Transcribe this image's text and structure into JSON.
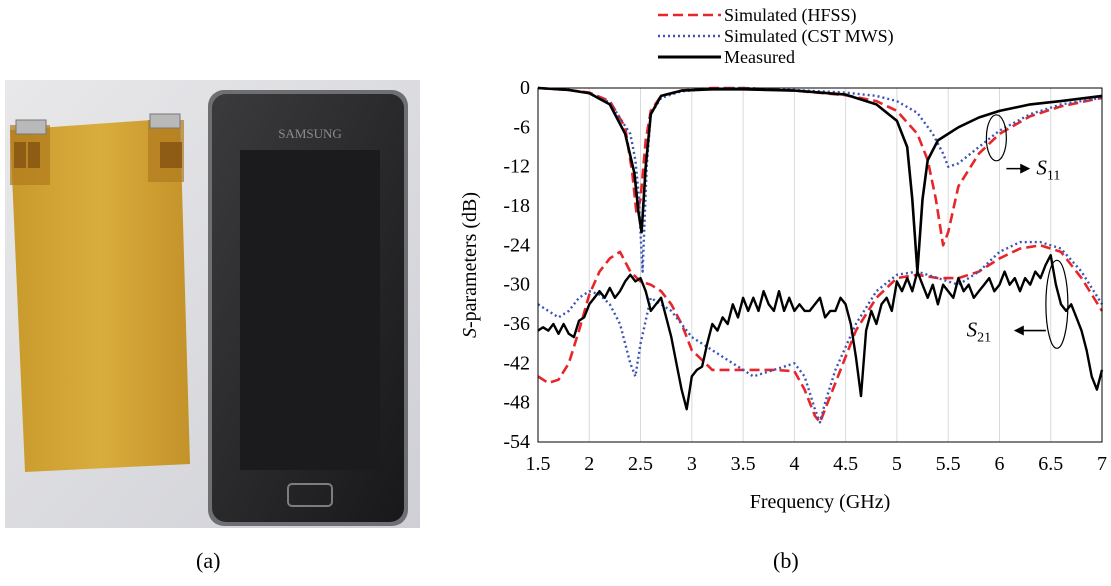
{
  "panels": {
    "a_label": "(a)",
    "b_label": "(b)"
  },
  "photo": {
    "phone_brand": "SAMSUNG"
  },
  "colors": {
    "hfss": "#e8262a",
    "cst": "#3a55b4",
    "measured": "#000000"
  },
  "chart_data": {
    "type": "line",
    "xlabel": "Frequency (GHz)",
    "ylabel_prefix": "S",
    "ylabel_suffix": "-parameters (dB)",
    "xlim": [
      1.5,
      7
    ],
    "ylim": [
      -54,
      0
    ],
    "xticks": [
      1.5,
      2,
      2.5,
      3,
      3.5,
      4,
      4.5,
      5,
      5.5,
      6,
      6.5,
      7
    ],
    "xtick_labels": [
      "1.5",
      "2",
      "2.5",
      "3",
      "3.5",
      "4",
      "4.5",
      "5",
      "5.5",
      "6",
      "6.5",
      "7"
    ],
    "yticks": [
      0,
      -6,
      -12,
      -18,
      -24,
      -30,
      -36,
      -42,
      -48,
      -54
    ],
    "ytick_labels": [
      "0",
      "-6",
      "-12",
      "-18",
      "-24",
      "-30",
      "-36",
      "-42",
      "-48",
      "-54"
    ],
    "grid": "vertical",
    "legend_position": "top",
    "annotations": [
      {
        "base": "S",
        "sub": "11"
      },
      {
        "base": "S",
        "sub": "21"
      }
    ],
    "series": [
      {
        "name": "Simulated (HFSS)",
        "style": "dashed",
        "color": "#e8262a",
        "x": [
          1.5,
          1.8,
          2.0,
          2.2,
          2.35,
          2.42,
          2.46,
          2.5,
          2.55,
          2.6,
          2.7,
          2.9,
          3.2,
          3.5,
          4.0,
          4.5,
          4.8,
          5.0,
          5.2,
          5.3,
          5.38,
          5.45,
          5.5,
          5.6,
          5.8,
          6.0,
          6.3,
          6.6,
          7.0
        ],
        "y": [
          0,
          -0.3,
          -0.7,
          -2,
          -6,
          -13,
          -19,
          -17,
          -8,
          -3.5,
          -1.2,
          -0.4,
          0,
          0,
          -0.4,
          -1.1,
          -2,
          -3.5,
          -7,
          -11,
          -17,
          -24,
          -22,
          -15,
          -10,
          -7,
          -4.3,
          -2.8,
          -1.5
        ],
        "label": "S11"
      },
      {
        "name": "Simulated (CST MWS)",
        "style": "dotted",
        "color": "#3a55b4",
        "x": [
          1.5,
          1.8,
          2.0,
          2.2,
          2.4,
          2.45,
          2.48,
          2.5,
          2.52,
          2.56,
          2.6,
          2.7,
          2.9,
          3.2,
          3.5,
          4.0,
          4.5,
          4.8,
          5.0,
          5.2,
          5.35,
          5.45,
          5.5,
          5.6,
          5.8,
          6.0,
          6.3,
          6.6,
          7.0
        ],
        "y": [
          0,
          -0.3,
          -0.8,
          -2.2,
          -7,
          -11,
          -16,
          -22,
          -28,
          -12,
          -4,
          -1.5,
          -0.5,
          -0.1,
          0,
          -0.3,
          -0.7,
          -1.2,
          -2,
          -3.8,
          -7,
          -10,
          -12,
          -11.5,
          -9,
          -6.5,
          -4,
          -2.5,
          -1.5
        ],
        "label": "S11"
      },
      {
        "name": "Measured",
        "style": "solid",
        "color": "#000000",
        "x": [
          1.5,
          1.8,
          2.0,
          2.2,
          2.35,
          2.44,
          2.48,
          2.51,
          2.55,
          2.6,
          2.7,
          2.9,
          3.2,
          3.5,
          4.0,
          4.5,
          4.8,
          5.0,
          5.1,
          5.15,
          5.2,
          5.25,
          5.3,
          5.4,
          5.6,
          5.8,
          6.0,
          6.3,
          6.6,
          7.0
        ],
        "y": [
          0,
          -0.3,
          -0.8,
          -2.5,
          -7,
          -13,
          -19,
          -22,
          -12,
          -4,
          -1.2,
          -0.4,
          -0.2,
          -0.2,
          -0.4,
          -1,
          -2.5,
          -5,
          -9,
          -17,
          -28,
          -17,
          -11,
          -8,
          -6,
          -4.5,
          -3.5,
          -2.5,
          -2,
          -1.2
        ],
        "label": "S11"
      },
      {
        "name": "Simulated (HFSS)",
        "style": "dashed",
        "color": "#e8262a",
        "x": [
          1.5,
          1.6,
          1.7,
          1.8,
          1.9,
          2.0,
          2.1,
          2.2,
          2.3,
          2.4,
          2.5,
          2.6,
          2.7,
          2.8,
          2.9,
          3.0,
          3.2,
          3.5,
          3.8,
          4.0,
          4.1,
          4.2,
          4.25,
          4.3,
          4.4,
          4.5,
          4.6,
          4.8,
          5.0,
          5.2,
          5.4,
          5.6,
          5.8,
          6.0,
          6.2,
          6.4,
          6.6,
          6.8,
          7.0
        ],
        "y": [
          -44,
          -45,
          -44.5,
          -42,
          -37,
          -31.5,
          -28,
          -26,
          -25,
          -28,
          -29.5,
          -30,
          -31,
          -33,
          -36,
          -40,
          -43,
          -43,
          -43,
          -43.2,
          -46,
          -50,
          -51,
          -49,
          -45,
          -41,
          -37,
          -32,
          -29,
          -28.5,
          -29,
          -29,
          -28,
          -26,
          -24.5,
          -24,
          -25,
          -29,
          -34
        ],
        "label": "S21"
      },
      {
        "name": "Simulated (CST MWS)",
        "style": "dotted",
        "color": "#3a55b4",
        "x": [
          1.5,
          1.6,
          1.7,
          1.8,
          1.9,
          2.0,
          2.1,
          2.2,
          2.3,
          2.4,
          2.45,
          2.5,
          2.6,
          2.8,
          3.0,
          3.2,
          3.4,
          3.6,
          3.8,
          4.0,
          4.1,
          4.2,
          4.25,
          4.3,
          4.4,
          4.6,
          4.8,
          5.0,
          5.2,
          5.4,
          5.6,
          5.8,
          6.0,
          6.2,
          6.4,
          6.6,
          6.8,
          7.0
        ],
        "y": [
          -33,
          -34,
          -35,
          -34,
          -32,
          -31,
          -31.5,
          -33,
          -36,
          -42,
          -44,
          -39,
          -32,
          -34,
          -38,
          -40,
          -42,
          -44,
          -43,
          -42,
          -44,
          -49,
          -51,
          -48,
          -43,
          -36,
          -31,
          -28.5,
          -28,
          -29,
          -30,
          -28,
          -25,
          -23.5,
          -23.5,
          -24.5,
          -28,
          -33
        ],
        "label": "S21"
      }
    ],
    "measured_s21": {
      "name": "Measured",
      "style": "solid",
      "color": "#000000",
      "x": [
        1.5,
        1.55,
        1.6,
        1.65,
        1.7,
        1.75,
        1.8,
        1.85,
        1.9,
        1.95,
        2.0,
        2.05,
        2.1,
        2.15,
        2.2,
        2.25,
        2.3,
        2.35,
        2.4,
        2.45,
        2.5,
        2.55,
        2.6,
        2.65,
        2.7,
        2.75,
        2.8,
        2.85,
        2.9,
        2.95,
        3.0,
        3.05,
        3.1,
        3.15,
        3.2,
        3.25,
        3.3,
        3.35,
        3.4,
        3.45,
        3.5,
        3.55,
        3.6,
        3.65,
        3.7,
        3.75,
        3.8,
        3.85,
        3.9,
        3.95,
        4.0,
        4.05,
        4.1,
        4.15,
        4.2,
        4.25,
        4.3,
        4.35,
        4.4,
        4.45,
        4.5,
        4.55,
        4.6,
        4.65,
        4.7,
        4.75,
        4.8,
        4.85,
        4.9,
        4.95,
        5.0,
        5.05,
        5.1,
        5.15,
        5.2,
        5.25,
        5.3,
        5.35,
        5.4,
        5.45,
        5.5,
        5.55,
        5.6,
        5.65,
        5.7,
        5.75,
        5.8,
        5.85,
        5.9,
        5.95,
        6.0,
        6.05,
        6.1,
        6.15,
        6.2,
        6.25,
        6.3,
        6.35,
        6.4,
        6.45,
        6.5,
        6.55,
        6.6,
        6.65,
        6.7,
        6.75,
        6.8,
        6.85,
        6.9,
        6.95,
        7.0
      ],
      "y": [
        -37,
        -36.5,
        -37,
        -36,
        -37.5,
        -36,
        -37.5,
        -38,
        -35.5,
        -35,
        -33,
        -32,
        -31,
        -32,
        -30.5,
        -32,
        -31,
        -29.5,
        -28.5,
        -29.5,
        -29,
        -31,
        -34,
        -33,
        -32,
        -35,
        -38,
        -42,
        -46,
        -49,
        -44,
        -43,
        -42.5,
        -39,
        -36,
        -37,
        -35,
        -36,
        -33,
        -35,
        -32,
        -34,
        -32,
        -34,
        -31,
        -33,
        -34,
        -31,
        -34,
        -32,
        -34,
        -33,
        -34,
        -34,
        -33,
        -32,
        -35,
        -34,
        -34,
        -32,
        -33,
        -36,
        -41,
        -47,
        -37,
        -34,
        -36,
        -33,
        -32,
        -34,
        -29.5,
        -31,
        -29,
        -31,
        -28,
        -30,
        -32,
        -30,
        -33,
        -30,
        -31,
        -32,
        -29,
        -31,
        -30,
        -32,
        -31,
        -30,
        -29,
        -31,
        -30,
        -28,
        -30,
        -29,
        -31,
        -29,
        -30,
        -28,
        -29,
        -27,
        -25.5,
        -30,
        -33,
        -34,
        -33,
        -35,
        -37,
        -40,
        -44,
        -46,
        -43
      ]
    }
  }
}
